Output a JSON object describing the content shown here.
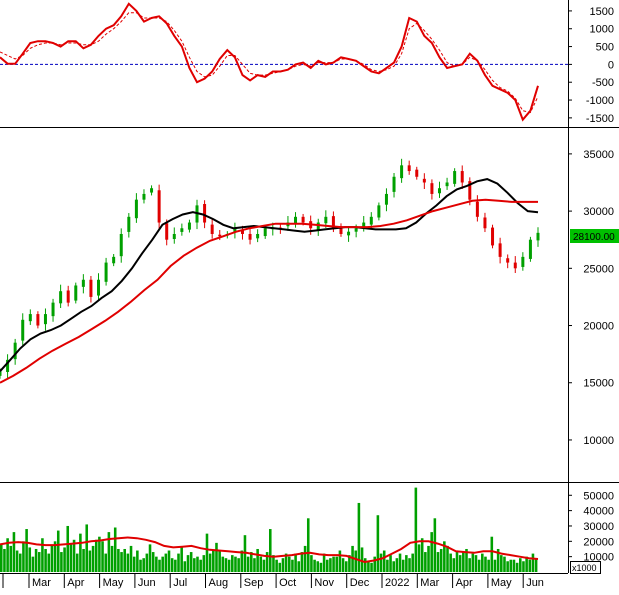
{
  "chart_data": [
    {
      "type": "line",
      "title": "",
      "ylim": [
        -1700,
        1750
      ],
      "y_ticks": [
        "1500",
        "1000",
        "500",
        "0",
        "-500",
        "-1000",
        "-1500"
      ],
      "zero_line": true,
      "series": [
        {
          "color": "#e00000",
          "values": [
            200,
            20,
            20,
            300,
            600,
            650,
            650,
            600,
            500,
            650,
            650,
            450,
            550,
            800,
            1000,
            1100,
            1350,
            1700,
            1500,
            1200,
            1300,
            1350,
            1150,
            800,
            500,
            -100,
            -500,
            -400,
            -200,
            150,
            400,
            200,
            -300,
            -450,
            -300,
            -350,
            -200,
            -200,
            -150,
            0,
            50,
            -100,
            100,
            0,
            50,
            200,
            150,
            100,
            -50,
            -200,
            -250,
            -100,
            50,
            500,
            1300,
            1200,
            800,
            600,
            200,
            -100,
            -50,
            0,
            300,
            100,
            -300,
            -600,
            -700,
            -800,
            -1000,
            -1550,
            -1300,
            -600
          ]
        },
        {
          "color": "#e00000",
          "dashed": true,
          "values": [
            350,
            250,
            150,
            250,
            450,
            550,
            600,
            600,
            550,
            600,
            600,
            550,
            550,
            650,
            850,
            1000,
            1200,
            1450,
            1450,
            1300,
            1300,
            1300,
            1200,
            950,
            650,
            200,
            -200,
            -350,
            -300,
            -50,
            250,
            250,
            0,
            -250,
            -300,
            -300,
            -250,
            -200,
            -150,
            -50,
            0,
            -50,
            50,
            50,
            50,
            150,
            150,
            100,
            0,
            -150,
            -200,
            -150,
            -50,
            300,
            1000,
            1150,
            950,
            700,
            400,
            50,
            -50,
            0,
            200,
            100,
            -150,
            -450,
            -650,
            -750,
            -950,
            -1300,
            -1350,
            -900
          ]
        }
      ]
    },
    {
      "type": "candlestick",
      "title": "",
      "ylim": [
        6500,
        37000
      ],
      "y_ticks": [
        "35000",
        "30000",
        "25000",
        "20000",
        "15000",
        "10000"
      ],
      "last_price_label": "28100.00",
      "series": [
        {
          "name": "",
          "type": "candlestick",
          "values": [
            16000,
            17000,
            18500,
            20500,
            21000,
            20000,
            21000,
            22000,
            23000,
            22000,
            23500,
            24000,
            22500,
            24000,
            25500,
            26000,
            28000,
            29500,
            31000,
            31500,
            32000,
            29000,
            27500,
            28000,
            28500,
            29000,
            30500,
            29000,
            28000,
            27800,
            28000,
            28500,
            28000,
            27500,
            28000,
            28500,
            28500,
            28500,
            29000,
            29500,
            29000,
            28500,
            29000,
            29500,
            28500,
            28000,
            28200,
            28500,
            29000,
            29500,
            30500,
            31500,
            33000,
            34000,
            33500,
            33000,
            32500,
            31500,
            32000,
            32500,
            33500,
            32500,
            31000,
            29500,
            28500,
            27000,
            26000,
            25500,
            25000,
            26000,
            27500,
            28100
          ]
        },
        {
          "name": "",
          "type": "line",
          "color": "#000000",
          "values": [
            16000,
            17000,
            18000,
            18800,
            19300,
            19600,
            20000,
            20600,
            21200,
            21700,
            22400,
            23000,
            23900,
            25000,
            26300,
            27500,
            28800,
            29300,
            29700,
            29900,
            29700,
            29300,
            28800,
            28500,
            28600,
            28700,
            28600,
            28500,
            28400,
            28300,
            28200,
            28300,
            28400,
            28500,
            28600,
            28600,
            28500,
            28400,
            28400,
            28400,
            28500,
            29000,
            29800,
            30500,
            31300,
            31900,
            32200,
            32600,
            32800,
            32400,
            31600,
            30700,
            30000,
            29900
          ]
        },
        {
          "name": "",
          "type": "line",
          "color": "#e00000",
          "values": [
            15000,
            15600,
            16300,
            17100,
            17800,
            18400,
            19000,
            19700,
            20400,
            21200,
            22100,
            23100,
            24000,
            25200,
            26100,
            26800,
            27400,
            27800,
            28200,
            28500,
            28700,
            28900,
            28900,
            28900,
            28800,
            28700,
            28600,
            28600,
            28600,
            28700,
            28900,
            29200,
            29600,
            30000,
            30300,
            30600,
            30900,
            31000,
            30900,
            30800,
            30800,
            30800
          ]
        }
      ]
    },
    {
      "type": "bar",
      "title": "",
      "ylim": [
        0,
        58000
      ],
      "y_ticks": [
        "50000",
        "40000",
        "30000",
        "20000",
        "10000"
      ],
      "unit_label": "x1000",
      "series": [
        {
          "name": "",
          "color": "#00a000",
          "values": [
            18000,
            15000,
            22000,
            17000,
            26000,
            14000,
            12000,
            20000,
            28000,
            16000,
            10000,
            15000,
            13000,
            22000,
            15000,
            12000,
            17000,
            20000,
            27000,
            13000,
            16000,
            30000,
            18000,
            21000,
            12000,
            25000,
            15000,
            31000,
            14000,
            17000,
            21000,
            23000,
            20000,
            12000,
            26000,
            17000,
            29000,
            15000,
            13000,
            15000,
            12000,
            17000,
            10000,
            14000,
            8000,
            9000,
            12000,
            18000,
            13000,
            10000,
            8000,
            10000,
            12000,
            14000,
            9000,
            8000,
            12000,
            16000,
            7000,
            11000,
            13000,
            9000,
            10000,
            8000,
            11000,
            25000,
            12000,
            14000,
            19000,
            14000,
            10000,
            9000,
            8000,
            11000,
            10000,
            9000,
            14000,
            24000,
            10000,
            13000,
            9000,
            15000,
            10000,
            8000,
            13000,
            28000,
            11000,
            8000,
            6000,
            9000,
            12000,
            10000,
            8000,
            12000,
            7000,
            13000,
            17000,
            35000,
            11000,
            8000,
            7000,
            6000,
            12000,
            8000,
            9000,
            10000,
            10000,
            14000,
            9000,
            7000,
            11000,
            17000,
            14000,
            45000,
            16000,
            9000,
            7000,
            6000,
            10000,
            37000,
            12000,
            14000,
            8000,
            11000,
            7000,
            9000,
            12000,
            8000,
            11000,
            9000,
            12000,
            55000,
            18000,
            22000,
            13000,
            17000,
            26000,
            35000,
            13000,
            15000,
            20000,
            17000,
            12000,
            9000,
            14000,
            11000,
            13000,
            15000,
            9000,
            12000,
            11000,
            8000,
            12000,
            10000,
            8000,
            23000,
            8000,
            15000,
            11000,
            10000,
            7000,
            8000,
            8000,
            6000,
            9000,
            7000,
            10000,
            8000,
            12000,
            9000
          ]
        },
        {
          "name": "",
          "type": "line",
          "color": "#e00000",
          "values": [
            18000,
            19000,
            19500,
            19000,
            18000,
            17500,
            17500,
            18000,
            18500,
            19000,
            20000,
            20500,
            21500,
            22000,
            22500,
            22000,
            21000,
            19500,
            17000,
            16000,
            16500,
            17000,
            15500,
            14500,
            14000,
            13500,
            13000,
            12500,
            11500,
            10500,
            10000,
            10500,
            11000,
            12000,
            12500,
            11500,
            11000,
            11000,
            10500,
            8500,
            6500,
            7500,
            9000,
            12000,
            15000,
            19000,
            20000,
            20000,
            18500,
            16500,
            13500,
            13000,
            12500,
            13500,
            13500,
            12000,
            11000,
            10000,
            9000,
            8500
          ]
        }
      ],
      "x_axis_labels": [
        "Mar",
        "Apr",
        "May",
        "Jun",
        "Jul",
        "Aug",
        "Sep",
        "Oct",
        "Nov",
        "Dec",
        "2022",
        "Mar",
        "Apr",
        "May",
        "Jun"
      ]
    }
  ],
  "colors": {
    "up": "#00a000",
    "down": "#e00000",
    "ma_short": "#000000",
    "ma_long": "#e00000",
    "zero_line": "#0000c0",
    "price_tag": "#00c000"
  }
}
